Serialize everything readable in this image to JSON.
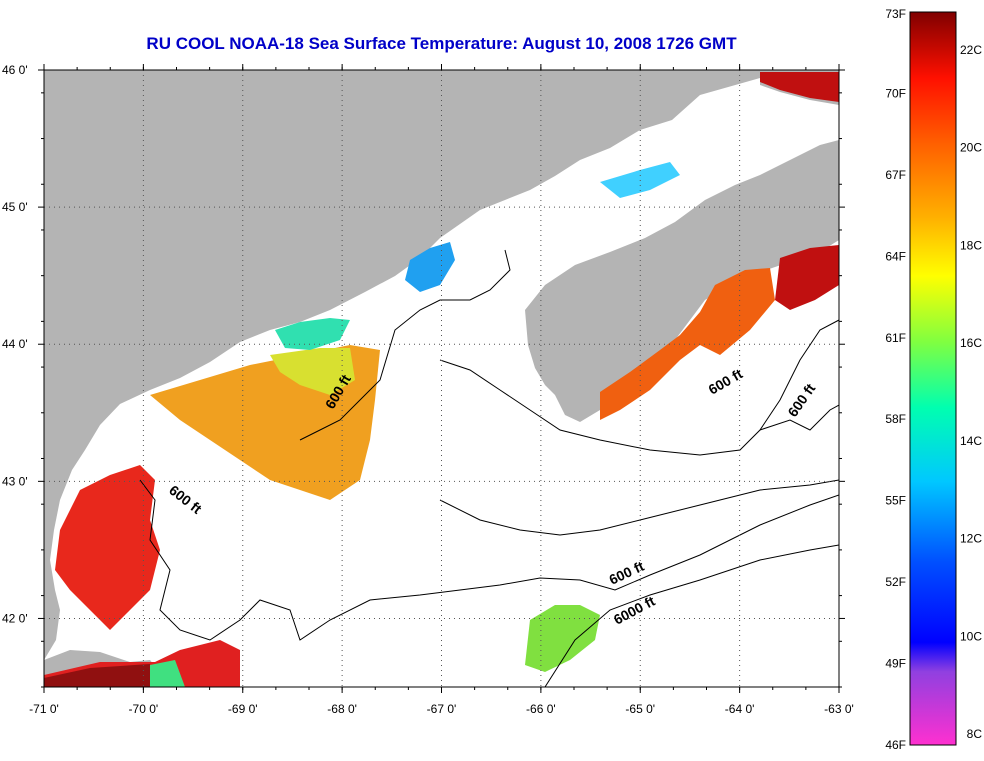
{
  "title": "RU COOL  NOAA-18  Sea Surface Temperature:  August 10, 2008 1726 GMT",
  "map": {
    "lon_range": [
      -71,
      -63
    ],
    "lat_range": [
      41.5,
      46
    ],
    "lon_ticks": [
      "-71 0'",
      "-70 0'",
      "-69 0'",
      "-68 0'",
      "-67 0'",
      "-66 0'",
      "-65 0'",
      "-64 0'",
      "-63 0'"
    ],
    "lat_ticks": [
      "46 0'",
      "45 0'",
      "44 0'",
      "43 0'",
      "42 0'"
    ],
    "land_color": "#b4b4b4",
    "cloud_color": "#ffffff",
    "contour_labels": [
      {
        "text": "600 ft"
      },
      {
        "text": "600 ft"
      },
      {
        "text": "600 ft"
      },
      {
        "text": "600 ft"
      },
      {
        "text": "600 ft"
      },
      {
        "text": "6000 ft"
      }
    ]
  },
  "colorbar": {
    "fahrenheit_labels": [
      "73F",
      "70F",
      "67F",
      "64F",
      "61F",
      "58F",
      "55F",
      "52F",
      "49F",
      "46F"
    ],
    "celsius_labels": [
      "22C",
      "20C",
      "18C",
      "16C",
      "14C",
      "12C",
      "10C",
      "8C"
    ],
    "colors": [
      "#ff30d0",
      "#9040e0",
      "#0000ff",
      "#00a0ff",
      "#00ffff",
      "#40ff80",
      "#ffff00",
      "#ffa000",
      "#ff4000",
      "#e00000",
      "#800000"
    ]
  }
}
